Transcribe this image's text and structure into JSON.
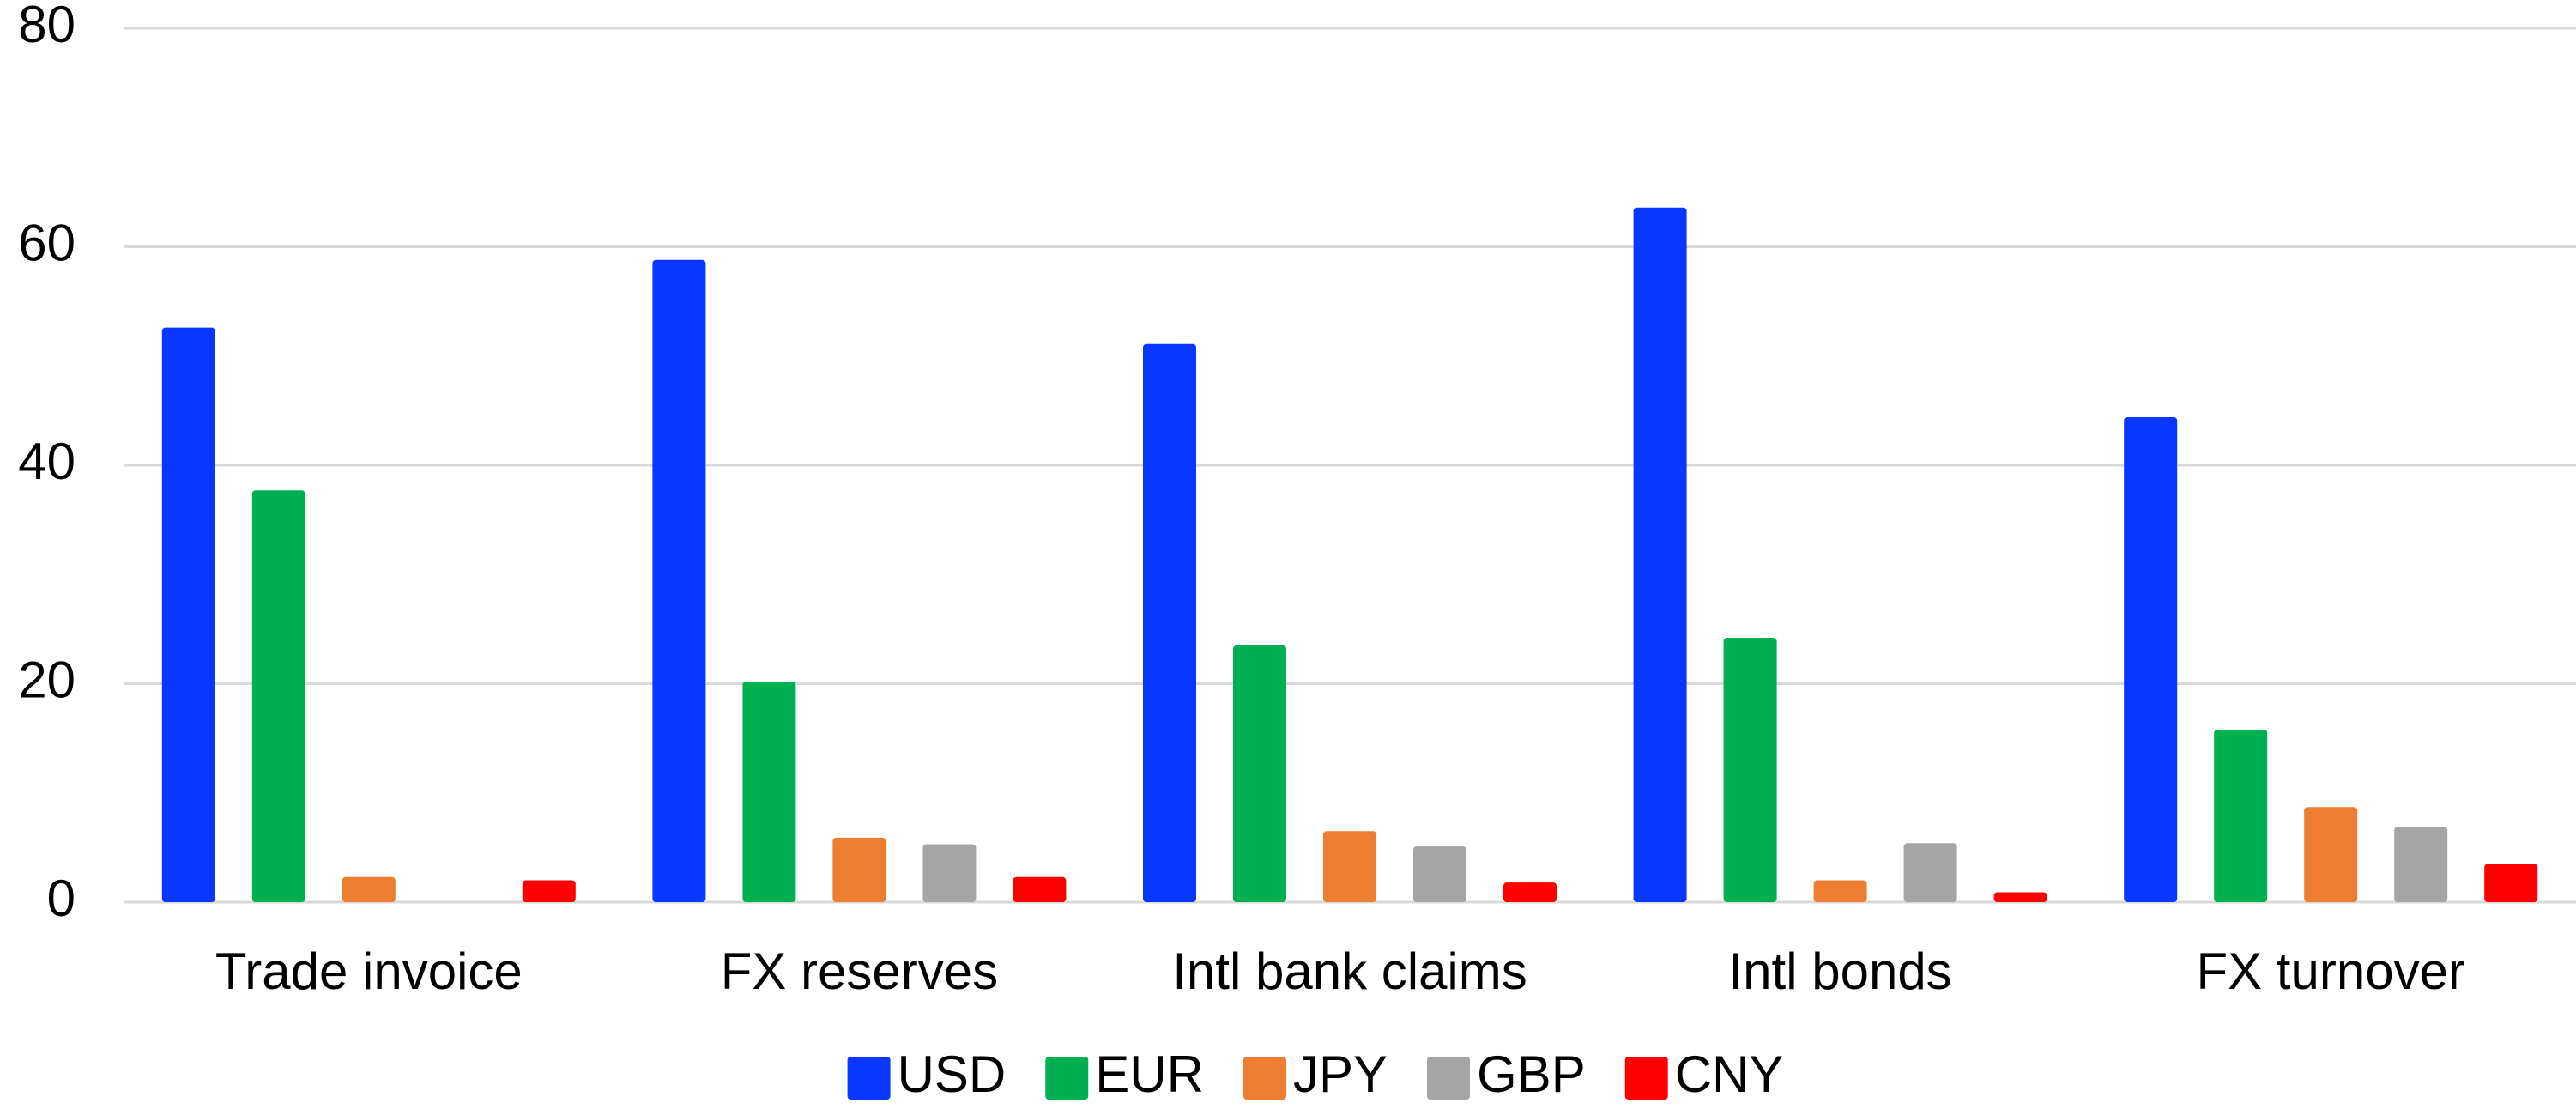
{
  "chart_data": {
    "type": "bar",
    "categories": [
      "Trade invoice",
      "FX reserves",
      "Intl bank claims",
      "Intl bonds",
      "FX turnover"
    ],
    "series": [
      {
        "name": "USD",
        "color": "#0a37ff",
        "values": [
          52.6,
          58.8,
          51.1,
          63.6,
          44.4
        ]
      },
      {
        "name": "EUR",
        "color": "#00b050",
        "values": [
          37.7,
          20.2,
          23.5,
          24.2,
          15.8
        ]
      },
      {
        "name": "JPY",
        "color": "#ed7d31",
        "values": [
          2.3,
          5.9,
          6.5,
          2.0,
          8.7
        ]
      },
      {
        "name": "GBP",
        "color": "#a5a5a5",
        "values": [
          null,
          5.3,
          5.1,
          5.4,
          6.9
        ]
      },
      {
        "name": "CNY",
        "color": "#ff0000",
        "values": [
          2.0,
          2.3,
          1.8,
          0.9,
          3.5
        ]
      }
    ],
    "ylim": [
      0,
      80
    ],
    "yticks": [
      0,
      20,
      40,
      60,
      80
    ],
    "grid": true,
    "legend": "bottom"
  }
}
